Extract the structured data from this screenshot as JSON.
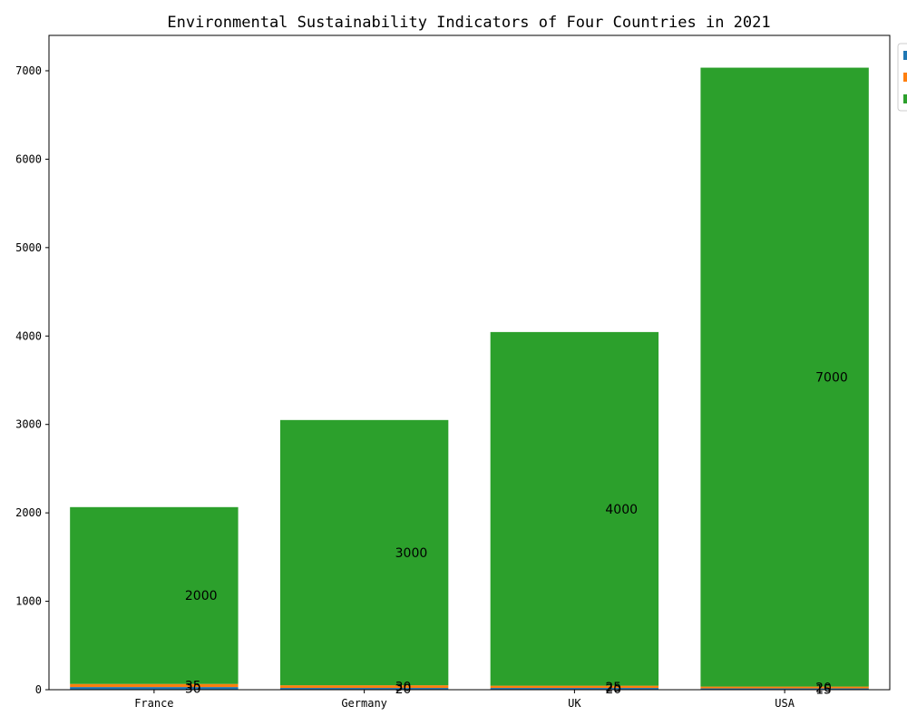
{
  "chart_data": {
    "type": "bar",
    "stacked": true,
    "title": "Environmental Sustainability Indicators of Four Countries in 2021",
    "xlabel": "",
    "ylabel": "",
    "categories": [
      "France",
      "Germany",
      "UK",
      "USA"
    ],
    "ylim": [
      0,
      7400
    ],
    "yticks": [
      0,
      1000,
      2000,
      3000,
      4000,
      5000,
      6000,
      7000
    ],
    "grid": false,
    "legend_position": "top-right",
    "series": [
      {
        "color": "#1f77b4",
        "values": [
          30,
          20,
          20,
          15
        ]
      },
      {
        "color": "#ff7f0e",
        "values": [
          35,
          30,
          25,
          20
        ]
      },
      {
        "color": "#2ca02c",
        "values": [
          2000,
          3000,
          4000,
          7000
        ]
      }
    ]
  }
}
